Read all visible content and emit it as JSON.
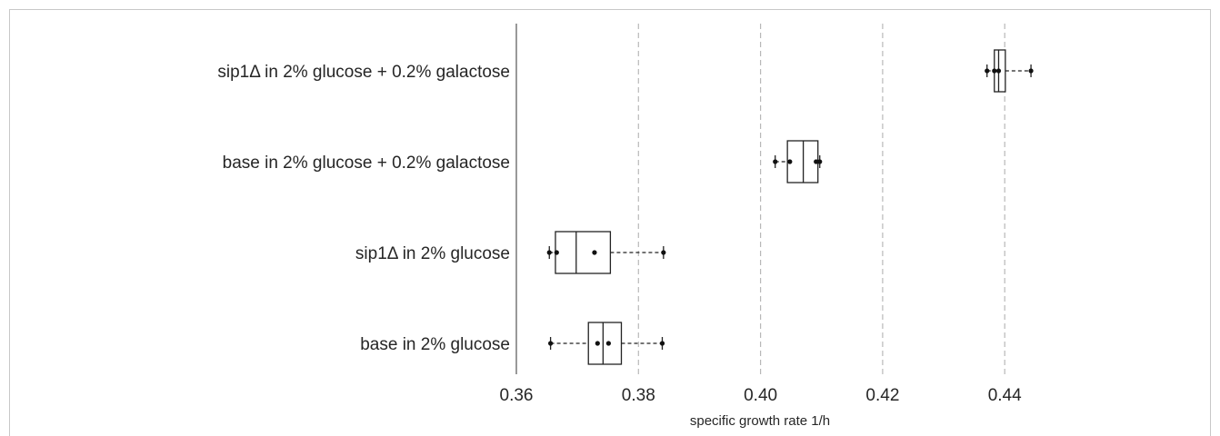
{
  "chart_data": {
    "type": "boxplot",
    "orientation": "horizontal",
    "xlabel": "specific growth rate 1/h",
    "xlim": [
      0.36,
      0.453
    ],
    "xticks": [
      0.36,
      0.38,
      0.4,
      0.42,
      0.44
    ],
    "xtick_labels": [
      "0.36",
      "0.38",
      "0.40",
      "0.42",
      "0.44"
    ],
    "grid": "vertical dashed at ticks",
    "categories": [
      "sip1Δ in 2% glucose + 0.2% galactose",
      "base in 2% glucose + 0.2% galactose",
      "sip1Δ in 2% glucose",
      "base in 2% glucose"
    ],
    "boxes": [
      {
        "whisker_low": 0.4371,
        "q1": 0.4383,
        "median": 0.439,
        "q3": 0.4401,
        "whisker_high": 0.4443,
        "points": [
          0.4371,
          0.4383,
          0.439,
          0.4443
        ]
      },
      {
        "whisker_low": 0.4024,
        "q1": 0.4044,
        "median": 0.407,
        "q3": 0.4094,
        "whisker_high": 0.4097,
        "points": [
          0.4024,
          0.4048,
          0.4091,
          0.4097
        ]
      },
      {
        "whisker_low": 0.3654,
        "q1": 0.3664,
        "median": 0.3698,
        "q3": 0.3754,
        "whisker_high": 0.3841,
        "points": [
          0.3654,
          0.3666,
          0.3728,
          0.3841
        ]
      },
      {
        "whisker_low": 0.3656,
        "q1": 0.3718,
        "median": 0.3742,
        "q3": 0.3772,
        "whisker_high": 0.3839,
        "points": [
          0.3656,
          0.3733,
          0.3751,
          0.3839
        ]
      }
    ]
  }
}
